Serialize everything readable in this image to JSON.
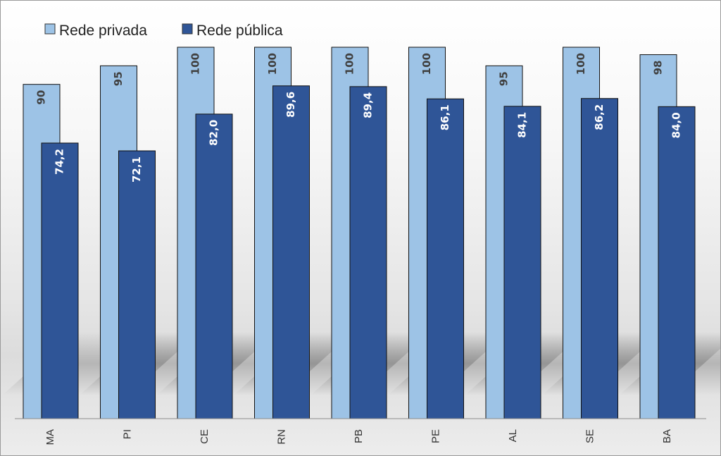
{
  "chart_data": {
    "type": "bar",
    "categories": [
      "MA",
      "PI",
      "CE",
      "RN",
      "PB",
      "PE",
      "AL",
      "SE",
      "BA"
    ],
    "series": [
      {
        "name": "Rede privada",
        "values": [
          90,
          95,
          100,
          100,
          100,
          100,
          95,
          100,
          98
        ],
        "labels": [
          "90",
          "95",
          "100",
          "100",
          "100",
          "100",
          "95",
          "100",
          "98"
        ],
        "color": "#9dc3e6",
        "label_color": "#404040"
      },
      {
        "name": "Rede pública",
        "values": [
          74.2,
          72.1,
          82.0,
          89.6,
          89.4,
          86.1,
          84.1,
          86.2,
          84.0
        ],
        "labels": [
          "74,2",
          "72,1",
          "82,0",
          "89,6",
          "89,4",
          "86,1",
          "84,1",
          "86,2",
          "84,0"
        ],
        "color": "#2f5597",
        "label_color": "#ffffff"
      }
    ],
    "ylim": [
      0,
      100
    ],
    "grid": false,
    "legend": "top-left",
    "title": "",
    "xlabel": "",
    "ylabel": ""
  }
}
